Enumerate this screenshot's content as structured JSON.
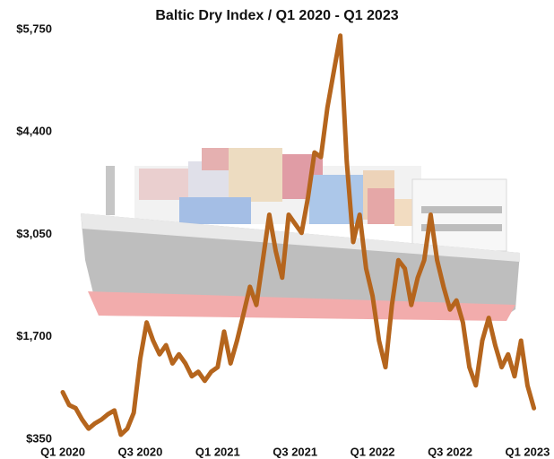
{
  "chart_data": {
    "type": "line",
    "title": "Baltic Dry Index / Q1 2020 - Q1 2023",
    "categories": [
      "Q1 2020",
      null,
      null,
      null,
      null,
      null,
      null,
      null,
      null,
      null,
      null,
      null,
      "Q3 2020",
      null,
      null,
      null,
      null,
      null,
      null,
      null,
      null,
      null,
      null,
      null,
      "Q1 2021",
      null,
      null,
      null,
      null,
      null,
      null,
      null,
      null,
      null,
      null,
      null,
      "Q3 2021",
      null,
      null,
      null,
      null,
      null,
      null,
      null,
      null,
      null,
      null,
      null,
      "Q1 2022",
      null,
      null,
      null,
      null,
      null,
      null,
      null,
      null,
      null,
      null,
      null,
      "Q3 2022",
      null,
      null,
      null,
      null,
      null,
      null,
      null,
      null,
      null,
      null,
      null,
      "Q1 2023",
      null
    ],
    "series": [
      {
        "color": "#b5651d",
        "values": [
          970,
          800,
          760,
          610,
          490,
          560,
          610,
          680,
          730,
          410,
          490,
          700,
          1410,
          1890,
          1650,
          1470,
          1590,
          1350,
          1470,
          1350,
          1180,
          1240,
          1120,
          1240,
          1300,
          1770,
          1350,
          1650,
          2000,
          2360,
          2120,
          2710,
          3310,
          2830,
          2480,
          3310,
          3190,
          3070,
          3540,
          4130,
          4070,
          4720,
          5200,
          5670,
          4010,
          2950,
          3310,
          2600,
          2240,
          1650,
          1300,
          2120,
          2710,
          2600,
          2120,
          2480,
          2710,
          3310,
          2710,
          2360,
          2060,
          2180,
          1890,
          1300,
          1060,
          1650,
          1950,
          1590,
          1300,
          1470,
          1180,
          1650,
          1060,
          760
        ]
      }
    ],
    "ylim": [
      350,
      5750
    ],
    "yticks": [
      {
        "value": 350,
        "label": "$350"
      },
      {
        "value": 1700,
        "label": "$1,700"
      },
      {
        "value": 3050,
        "label": "$3,050"
      },
      {
        "value": 4400,
        "label": "$4,400"
      },
      {
        "value": 5750,
        "label": "$5,750"
      }
    ],
    "grid": false
  }
}
